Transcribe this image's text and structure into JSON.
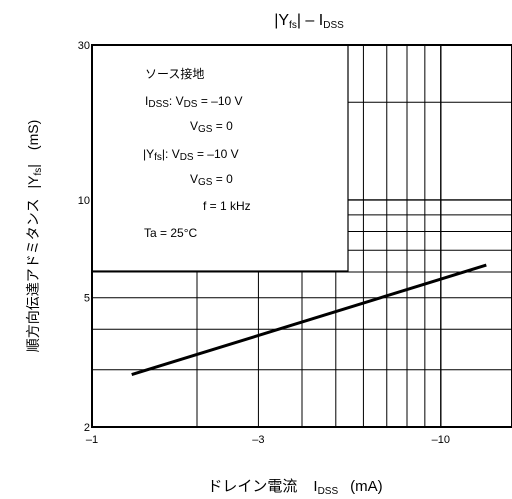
{
  "chart_data": {
    "type": "line",
    "title_main": "|Y",
    "title_main_sub": "fs",
    "title_rest": "| – I",
    "title_rest_sub": "DSS",
    "ylabel_jp": "順方向伝達アドミタンス",
    "ylabel_sym": "|Y",
    "ylabel_sym_sub": "fs",
    "ylabel_sym_end": "|",
    "ylabel_unit": "(mS)",
    "xlabel_jp": "ドレイン電流",
    "xlabel_sym": "I",
    "xlabel_sym_sub": "DSS",
    "xlabel_unit": "(mA)",
    "x_scale": "log",
    "y_scale": "log",
    "xlim": [
      -1,
      -16
    ],
    "ylim": [
      2,
      30
    ],
    "x_ticks": [
      {
        "value": -1,
        "label": "–1"
      },
      {
        "value": -3,
        "label": "–3"
      },
      {
        "value": -10,
        "label": "–10"
      }
    ],
    "y_ticks": [
      {
        "value": 2,
        "label": "2"
      },
      {
        "value": 5,
        "label": "5"
      },
      {
        "value": 10,
        "label": "10"
      },
      {
        "value": 30,
        "label": "30"
      }
    ],
    "series": [
      {
        "x": [
          -1.3,
          -13.5
        ],
        "y": [
          2.9,
          6.3
        ]
      }
    ],
    "conditions": {
      "title": "ソース接地",
      "l1_a": "I",
      "l1_sub": "DSS",
      "l1_b": ": V",
      "l1_sub2": "DS",
      "l1_c": " = –10 V",
      "l2_a": "V",
      "l2_sub": "GS",
      "l2_b": " = 0",
      "l3_a": "|Y",
      "l3_sub": "fs",
      "l3_b": "|: V",
      "l3_sub2": "DS",
      "l3_c": " = –10 V",
      "l4_a": "V",
      "l4_sub": "GS",
      "l4_b": " = 0",
      "l5": "f = 1 kHz",
      "l6": "Ta = 25°C"
    }
  }
}
